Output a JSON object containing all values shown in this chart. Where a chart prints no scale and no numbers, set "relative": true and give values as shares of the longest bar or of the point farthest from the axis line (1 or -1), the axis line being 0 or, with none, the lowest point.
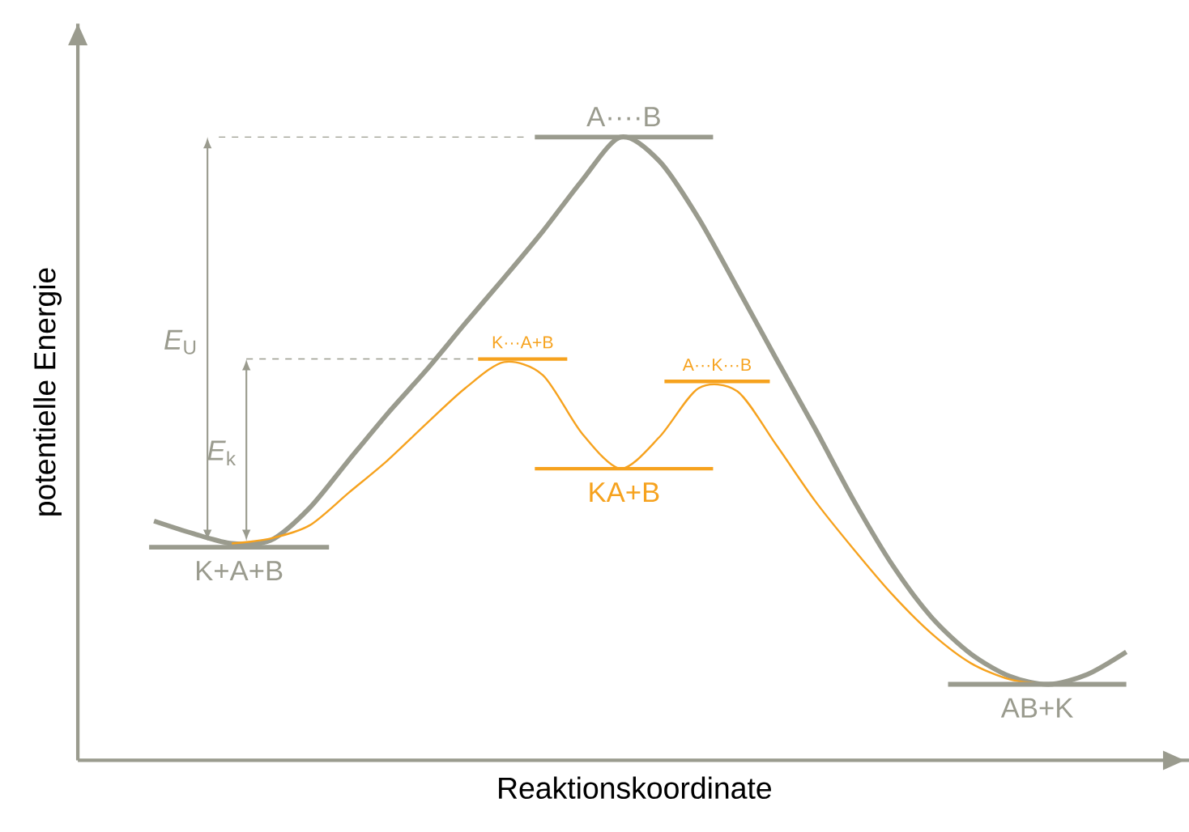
{
  "chart_data": {
    "type": "line",
    "relative": true,
    "xlabel": "Reaktionskoordinate",
    "ylabel": "potentielle Energie",
    "categories": [
      null,
      null,
      null,
      null,
      null,
      null,
      null,
      null,
      null,
      null,
      null,
      null,
      null,
      null,
      null,
      null,
      null,
      null,
      null,
      null,
      null,
      null,
      null,
      null,
      null,
      null
    ],
    "series": [
      {
        "color": "#9a9b8e",
        "values": [
          0.384,
          0.364,
          0.348,
          0.353,
          0.405,
          0.481,
          0.556,
          0.626,
          0.701,
          0.774,
          0.849,
          0.93,
          1.0,
          0.961,
          0.87,
          0.758,
          0.644,
          0.532,
          0.416,
          0.312,
          0.229,
          0.171,
          0.135,
          0.122,
          0.138,
          0.174
        ]
      },
      {
        "color": "#f6a21e",
        "values": [
          null,
          null,
          0.348,
          0.356,
          0.377,
          0.429,
          0.481,
          0.54,
          0.597,
          0.639,
          0.618,
          0.525,
          0.468,
          0.519,
          0.597,
          0.592,
          0.506,
          0.416,
          0.338,
          0.265,
          0.203,
          0.156,
          0.13,
          0.122,
          null,
          null
        ]
      }
    ],
    "ref_lines": [
      {
        "axis": "y",
        "value": 1.0,
        "label": "A····B",
        "color": "#9a9b8e"
      },
      {
        "axis": "y",
        "value": 0.342,
        "label": "K+A+B",
        "color": "#9a9b8e"
      },
      {
        "axis": "y",
        "value": 0.468,
        "label": "KA+B",
        "color": "#f6a21e"
      },
      {
        "axis": "y",
        "value": 0.644,
        "label": "K···A+B",
        "color": "#f6a21e"
      },
      {
        "axis": "y",
        "value": 0.608,
        "label": "A···K···B",
        "color": "#f6a21e"
      },
      {
        "axis": "y",
        "value": 0.122,
        "label": "AB+K",
        "color": "#9a9b8e"
      }
    ],
    "annotations": [
      "*E*$_{U}$",
      "*E*$_{k}$"
    ]
  }
}
